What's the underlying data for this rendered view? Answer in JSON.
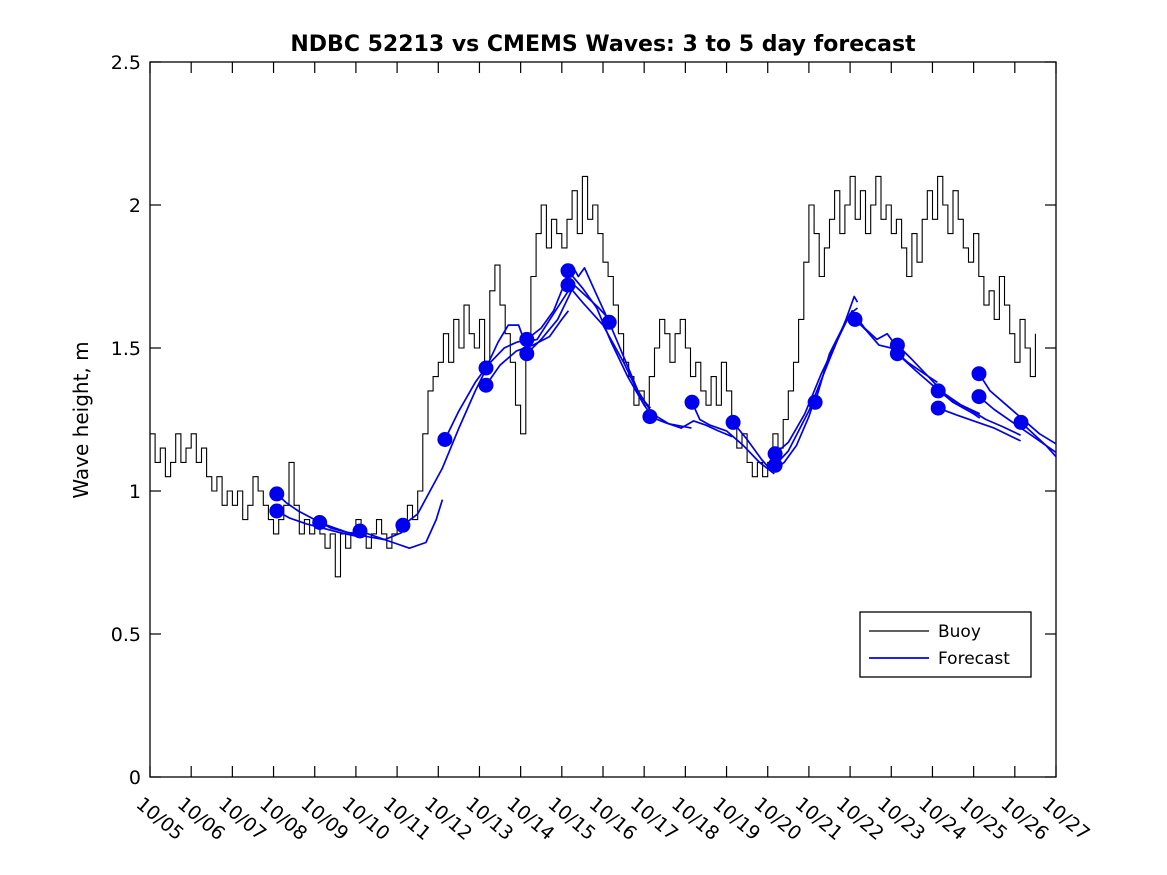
{
  "chart_data": {
    "type": "line",
    "title": "NDBC 52213 vs CMEMS Waves: 3 to 5 day forecast",
    "xlabel": "",
    "ylabel": "Wave height, m",
    "x_range_days": [
      5,
      27
    ],
    "ylim": [
      0,
      2.5
    ],
    "yticks": [
      0,
      0.5,
      1,
      1.5,
      2,
      2.5
    ],
    "ytick_labels": [
      "0",
      "0.5",
      "1",
      "1.5",
      "2",
      "2.5"
    ],
    "xtick_labels": [
      "10/05",
      "10/06",
      "10/07",
      "10/08",
      "10/09",
      "10/10",
      "10/11",
      "10/12",
      "10/13",
      "10/14",
      "10/15",
      "10/16",
      "10/17",
      "10/18",
      "10/19",
      "10/20",
      "10/21",
      "10/22",
      "10/23",
      "10/24",
      "10/25",
      "10/26",
      "10/27"
    ],
    "grid": false,
    "legend_position": "lower-right-inside",
    "legend": [
      {
        "label": "Buoy",
        "color": "#000000"
      },
      {
        "label": "Forecast",
        "color": "#0000ee"
      }
    ],
    "colors": {
      "buoy": "#000000",
      "forecast": "#0000ee",
      "background": "#ffffff"
    },
    "buoy": {
      "start_day": 5.0,
      "step_days": 0.125,
      "values": [
        1.2,
        1.1,
        1.15,
        1.05,
        1.1,
        1.2,
        1.1,
        1.15,
        1.2,
        1.1,
        1.15,
        1.05,
        1.0,
        1.05,
        0.95,
        1.0,
        0.95,
        1.0,
        0.9,
        0.95,
        1.05,
        1.0,
        0.95,
        0.9,
        0.85,
        0.9,
        0.95,
        1.1,
        0.95,
        0.85,
        0.9,
        0.85,
        0.9,
        0.85,
        0.8,
        0.85,
        0.7,
        0.85,
        0.8,
        0.85,
        0.9,
        0.85,
        0.8,
        0.85,
        0.9,
        0.85,
        0.8,
        0.85,
        0.88,
        0.9,
        0.95,
        0.9,
        1.0,
        1.2,
        1.35,
        1.4,
        1.45,
        1.55,
        1.45,
        1.6,
        1.5,
        1.65,
        1.55,
        1.5,
        1.6,
        1.45,
        1.7,
        1.79,
        1.65,
        1.55,
        1.45,
        1.3,
        1.2,
        1.55,
        1.75,
        1.9,
        2.0,
        1.85,
        1.95,
        1.9,
        1.85,
        1.95,
        2.05,
        1.9,
        2.1,
        1.95,
        2.0,
        1.9,
        1.8,
        1.75,
        1.65,
        1.55,
        1.45,
        1.4,
        1.3,
        1.35,
        1.3,
        1.4,
        1.5,
        1.6,
        1.55,
        1.45,
        1.55,
        1.6,
        1.5,
        1.4,
        1.45,
        1.35,
        1.3,
        1.4,
        1.3,
        1.45,
        1.35,
        1.25,
        1.15,
        1.2,
        1.1,
        1.05,
        1.1,
        1.05,
        1.1,
        1.2,
        1.15,
        1.25,
        1.35,
        1.45,
        1.6,
        1.8,
        2.0,
        1.9,
        1.75,
        1.85,
        1.95,
        2.05,
        1.9,
        2.0,
        2.1,
        1.95,
        2.05,
        1.9,
        2.0,
        2.1,
        1.95,
        2.0,
        1.9,
        1.95,
        1.85,
        1.75,
        1.9,
        1.8,
        1.95,
        2.05,
        1.95,
        2.1,
        2.0,
        1.9,
        2.05,
        1.95,
        1.85,
        1.8,
        1.9,
        1.75,
        1.65,
        1.7,
        1.6,
        1.75,
        1.65,
        1.55,
        1.45,
        1.6,
        1.5,
        1.4,
        1.55
      ]
    },
    "forecast_segments": [
      [
        [
          8.08,
          0.99
        ],
        [
          8.3,
          0.96
        ],
        [
          8.6,
          0.93
        ],
        [
          9.0,
          0.9
        ],
        [
          9.4,
          0.87
        ],
        [
          9.8,
          0.855
        ],
        [
          10.08,
          0.85
        ]
      ],
      [
        [
          8.08,
          0.93
        ],
        [
          8.4,
          0.905
        ],
        [
          8.8,
          0.885
        ],
        [
          9.2,
          0.87
        ],
        [
          9.6,
          0.855
        ],
        [
          10.08,
          0.84
        ]
      ],
      [
        [
          9.12,
          0.89
        ],
        [
          9.5,
          0.87
        ],
        [
          9.9,
          0.85
        ],
        [
          10.3,
          0.84
        ],
        [
          10.7,
          0.83
        ],
        [
          11.12,
          0.855
        ]
      ],
      [
        [
          10.1,
          0.86
        ],
        [
          10.5,
          0.84
        ],
        [
          10.9,
          0.82
        ],
        [
          11.3,
          0.8
        ],
        [
          11.7,
          0.82
        ],
        [
          11.95,
          0.9
        ],
        [
          12.1,
          0.97
        ]
      ],
      [
        [
          11.14,
          0.88
        ],
        [
          11.5,
          0.92
        ],
        [
          11.8,
          1.0
        ],
        [
          12.1,
          1.08
        ],
        [
          12.5,
          1.22
        ],
        [
          12.9,
          1.35
        ],
        [
          13.14,
          1.42
        ]
      ],
      [
        [
          12.16,
          1.18
        ],
        [
          12.5,
          1.28
        ],
        [
          12.9,
          1.38
        ],
        [
          13.2,
          1.44
        ],
        [
          13.6,
          1.5
        ],
        [
          13.9,
          1.52
        ],
        [
          14.16,
          1.53
        ]
      ],
      [
        [
          13.16,
          1.43
        ],
        [
          13.45,
          1.52
        ],
        [
          13.7,
          1.58
        ],
        [
          13.95,
          1.58
        ],
        [
          14.1,
          1.52
        ],
        [
          14.4,
          1.53
        ],
        [
          14.8,
          1.62
        ],
        [
          15.16,
          1.7
        ]
      ],
      [
        [
          13.16,
          1.37
        ],
        [
          13.5,
          1.44
        ],
        [
          13.9,
          1.49
        ],
        [
          14.3,
          1.51
        ],
        [
          14.7,
          1.54
        ],
        [
          15.0,
          1.6
        ],
        [
          15.16,
          1.63
        ]
      ],
      [
        [
          14.15,
          1.53
        ],
        [
          14.5,
          1.57
        ],
        [
          14.8,
          1.63
        ],
        [
          15.05,
          1.72
        ],
        [
          15.25,
          1.79
        ],
        [
          15.4,
          1.75
        ],
        [
          15.55,
          1.78
        ],
        [
          15.8,
          1.7
        ],
        [
          16.15,
          1.59
        ]
      ],
      [
        [
          14.15,
          1.48
        ],
        [
          14.5,
          1.53
        ],
        [
          14.9,
          1.6
        ],
        [
          15.3,
          1.72
        ],
        [
          15.6,
          1.68
        ],
        [
          15.9,
          1.64
        ],
        [
          16.15,
          1.6
        ]
      ],
      [
        [
          15.15,
          1.77
        ],
        [
          15.5,
          1.71
        ],
        [
          15.85,
          1.64
        ],
        [
          16.2,
          1.52
        ],
        [
          16.6,
          1.4
        ],
        [
          17.0,
          1.3
        ],
        [
          17.15,
          1.27
        ]
      ],
      [
        [
          15.15,
          1.72
        ],
        [
          15.5,
          1.66
        ],
        [
          16.0,
          1.58
        ],
        [
          16.5,
          1.45
        ],
        [
          16.9,
          1.33
        ],
        [
          17.15,
          1.29
        ]
      ],
      [
        [
          16.15,
          1.59
        ],
        [
          16.5,
          1.47
        ],
        [
          16.85,
          1.35
        ],
        [
          17.2,
          1.27
        ],
        [
          17.6,
          1.235
        ],
        [
          18.15,
          1.22
        ]
      ],
      [
        [
          17.14,
          1.26
        ],
        [
          17.5,
          1.24
        ],
        [
          17.9,
          1.22
        ],
        [
          18.2,
          1.245
        ],
        [
          18.5,
          1.23
        ],
        [
          18.8,
          1.21
        ],
        [
          19.14,
          1.19
        ]
      ],
      [
        [
          18.16,
          1.31
        ],
        [
          18.35,
          1.25
        ],
        [
          18.6,
          1.23
        ],
        [
          19.0,
          1.21
        ],
        [
          19.4,
          1.16
        ],
        [
          19.8,
          1.1
        ],
        [
          20.16,
          1.06
        ]
      ],
      [
        [
          19.16,
          1.24
        ],
        [
          19.5,
          1.18
        ],
        [
          19.85,
          1.11
        ],
        [
          20.1,
          1.07
        ],
        [
          20.4,
          1.1
        ],
        [
          20.7,
          1.16
        ],
        [
          21.0,
          1.26
        ],
        [
          21.16,
          1.33
        ]
      ],
      [
        [
          20.18,
          1.13
        ],
        [
          20.5,
          1.17
        ],
        [
          20.9,
          1.27
        ],
        [
          21.3,
          1.41
        ],
        [
          21.7,
          1.53
        ],
        [
          22.0,
          1.62
        ],
        [
          22.18,
          1.64
        ]
      ],
      [
        [
          20.18,
          1.09
        ],
        [
          20.5,
          1.14
        ],
        [
          21.0,
          1.28
        ],
        [
          21.5,
          1.46
        ],
        [
          21.9,
          1.6
        ],
        [
          22.1,
          1.68
        ],
        [
          22.18,
          1.66
        ]
      ],
      [
        [
          21.15,
          1.31
        ],
        [
          21.5,
          1.48
        ],
        [
          21.85,
          1.58
        ],
        [
          22.05,
          1.63
        ],
        [
          22.35,
          1.57
        ],
        [
          22.65,
          1.53
        ],
        [
          22.9,
          1.55
        ],
        [
          23.15,
          1.5
        ]
      ],
      [
        [
          22.12,
          1.6
        ],
        [
          22.4,
          1.56
        ],
        [
          22.7,
          1.51
        ],
        [
          23.0,
          1.5
        ],
        [
          23.4,
          1.45
        ],
        [
          23.8,
          1.41
        ],
        [
          24.12,
          1.38
        ]
      ],
      [
        [
          23.15,
          1.51
        ],
        [
          23.5,
          1.46
        ],
        [
          23.9,
          1.4
        ],
        [
          24.3,
          1.34
        ],
        [
          24.7,
          1.3
        ],
        [
          25.15,
          1.27
        ]
      ],
      [
        [
          23.15,
          1.48
        ],
        [
          23.6,
          1.42
        ],
        [
          24.0,
          1.37
        ],
        [
          24.5,
          1.31
        ],
        [
          25.0,
          1.27
        ],
        [
          25.15,
          1.255
        ]
      ],
      [
        [
          24.14,
          1.35
        ],
        [
          24.5,
          1.315
        ],
        [
          24.9,
          1.285
        ],
        [
          25.3,
          1.25
        ],
        [
          25.7,
          1.225
        ],
        [
          26.14,
          1.195
        ]
      ],
      [
        [
          24.14,
          1.29
        ],
        [
          24.6,
          1.265
        ],
        [
          25.0,
          1.245
        ],
        [
          25.5,
          1.22
        ],
        [
          26.0,
          1.185
        ],
        [
          26.14,
          1.175
        ]
      ],
      [
        [
          25.13,
          1.41
        ],
        [
          25.4,
          1.35
        ],
        [
          25.8,
          1.3
        ],
        [
          26.2,
          1.25
        ],
        [
          26.6,
          1.2
        ],
        [
          27.0,
          1.165
        ]
      ],
      [
        [
          25.13,
          1.33
        ],
        [
          25.5,
          1.285
        ],
        [
          26.0,
          1.235
        ],
        [
          26.5,
          1.185
        ],
        [
          27.0,
          1.135
        ]
      ],
      [
        [
          26.15,
          1.24
        ],
        [
          26.45,
          1.2
        ],
        [
          26.75,
          1.16
        ],
        [
          27.0,
          1.12
        ]
      ]
    ]
  }
}
